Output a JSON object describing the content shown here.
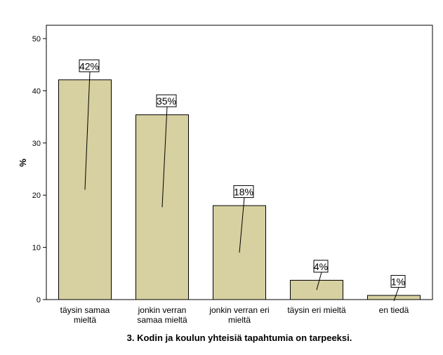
{
  "chart_data": {
    "type": "bar",
    "categories": [
      [
        "täysin samaa",
        "mieltä"
      ],
      [
        "jonkin verran",
        "samaa mieltä"
      ],
      [
        "jonkin verran eri",
        "mieltä"
      ],
      [
        "täysin eri mieltä"
      ],
      [
        "en tiedä"
      ]
    ],
    "values": [
      42.1,
      35.4,
      18.0,
      3.7,
      0.8
    ],
    "data_labels": [
      "42%",
      "35%",
      "18%",
      "4%",
      "1%"
    ],
    "xlabel": "3. Kodin ja koulun yhteisiä tapahtumia on tarpeeksi.",
    "ylabel": "%",
    "ylim": [
      0,
      50
    ],
    "yticks": [
      0,
      10,
      20,
      30,
      40,
      50
    ],
    "grid": false,
    "legend": "none",
    "colors": {
      "bar_fill": "#d7d0a0",
      "bar_stroke": "#000000",
      "axis": "#000000"
    }
  }
}
